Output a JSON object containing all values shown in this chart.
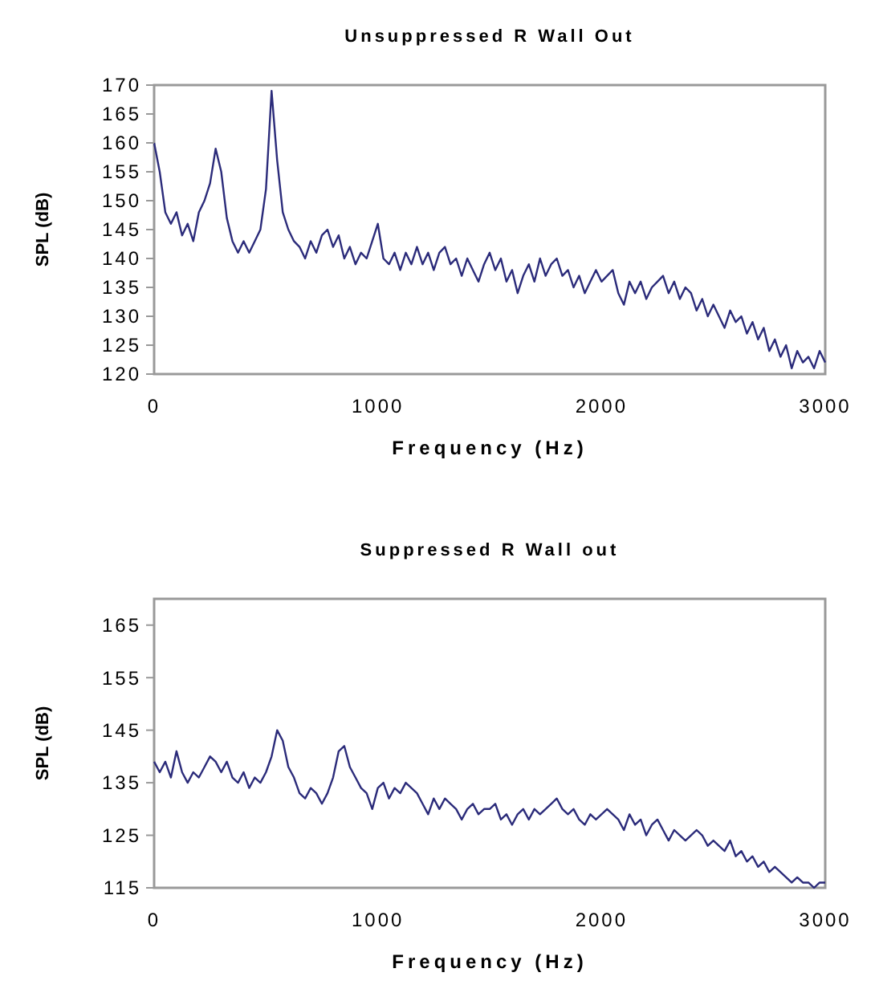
{
  "chart_data": [
    {
      "type": "line",
      "title": "Unsuppressed R Wall Out",
      "xlabel": "Frequency (Hz)",
      "ylabel": "SPL (dB)",
      "xlim": [
        0,
        3000
      ],
      "xticks": [
        0,
        1000,
        2000,
        3000
      ],
      "ylim": [
        120,
        170
      ],
      "yticks": [
        120,
        125,
        130,
        135,
        140,
        145,
        150,
        155,
        160,
        165,
        170
      ],
      "x": [
        0,
        25,
        50,
        75,
        100,
        125,
        150,
        175,
        200,
        225,
        250,
        275,
        300,
        325,
        350,
        375,
        400,
        425,
        450,
        475,
        500,
        525,
        550,
        575,
        600,
        625,
        650,
        675,
        700,
        725,
        750,
        775,
        800,
        825,
        850,
        875,
        900,
        925,
        950,
        975,
        1000,
        1025,
        1050,
        1075,
        1100,
        1125,
        1150,
        1175,
        1200,
        1225,
        1250,
        1275,
        1300,
        1325,
        1350,
        1375,
        1400,
        1425,
        1450,
        1475,
        1500,
        1525,
        1550,
        1575,
        1600,
        1625,
        1650,
        1675,
        1700,
        1725,
        1750,
        1775,
        1800,
        1825,
        1850,
        1875,
        1900,
        1925,
        1950,
        1975,
        2000,
        2025,
        2050,
        2075,
        2100,
        2125,
        2150,
        2175,
        2200,
        2225,
        2250,
        2275,
        2300,
        2325,
        2350,
        2375,
        2400,
        2425,
        2450,
        2475,
        2500,
        2525,
        2550,
        2575,
        2600,
        2625,
        2650,
        2675,
        2700,
        2725,
        2750,
        2775,
        2800,
        2825,
        2850,
        2875,
        2900,
        2925,
        2950,
        2975,
        3000
      ],
      "series": [
        {
          "color": "#2b2b7a",
          "values": [
            160,
            155,
            148,
            146,
            148,
            144,
            146,
            143,
            148,
            150,
            153,
            159,
            155,
            147,
            143,
            141,
            143,
            141,
            143,
            145,
            152,
            169,
            157,
            148,
            145,
            143,
            142,
            140,
            143,
            141,
            144,
            145,
            142,
            144,
            140,
            142,
            139,
            141,
            140,
            143,
            146,
            140,
            139,
            141,
            138,
            141,
            139,
            142,
            139,
            141,
            138,
            141,
            142,
            139,
            140,
            137,
            140,
            138,
            136,
            139,
            141,
            138,
            140,
            136,
            138,
            134,
            137,
            139,
            136,
            140,
            137,
            139,
            140,
            137,
            138,
            135,
            137,
            134,
            136,
            138,
            136,
            137,
            138,
            134,
            132,
            136,
            134,
            136,
            133,
            135,
            136,
            137,
            134,
            136,
            133,
            135,
            134,
            131,
            133,
            130,
            132,
            130,
            128,
            131,
            129,
            130,
            127,
            129,
            126,
            128,
            124,
            126,
            123,
            125,
            121,
            124,
            122,
            123,
            121,
            124,
            122
          ]
        }
      ]
    },
    {
      "type": "line",
      "title": "Suppressed R Wall out",
      "xlabel": "Frequency (Hz)",
      "ylabel": "SPL (dB)",
      "xlim": [
        0,
        3000
      ],
      "xticks": [
        0,
        1000,
        2000,
        3000
      ],
      "ylim": [
        115,
        170
      ],
      "yticks": [
        115,
        125,
        135,
        145,
        155,
        165
      ],
      "x": [
        0,
        25,
        50,
        75,
        100,
        125,
        150,
        175,
        200,
        225,
        250,
        275,
        300,
        325,
        350,
        375,
        400,
        425,
        450,
        475,
        500,
        525,
        550,
        575,
        600,
        625,
        650,
        675,
        700,
        725,
        750,
        775,
        800,
        825,
        850,
        875,
        900,
        925,
        950,
        975,
        1000,
        1025,
        1050,
        1075,
        1100,
        1125,
        1150,
        1175,
        1200,
        1225,
        1250,
        1275,
        1300,
        1325,
        1350,
        1375,
        1400,
        1425,
        1450,
        1475,
        1500,
        1525,
        1550,
        1575,
        1600,
        1625,
        1650,
        1675,
        1700,
        1725,
        1750,
        1775,
        1800,
        1825,
        1850,
        1875,
        1900,
        1925,
        1950,
        1975,
        2000,
        2025,
        2050,
        2075,
        2100,
        2125,
        2150,
        2175,
        2200,
        2225,
        2250,
        2275,
        2300,
        2325,
        2350,
        2375,
        2400,
        2425,
        2450,
        2475,
        2500,
        2525,
        2550,
        2575,
        2600,
        2625,
        2650,
        2675,
        2700,
        2725,
        2750,
        2775,
        2800,
        2825,
        2850,
        2875,
        2900,
        2925,
        2950,
        2975,
        3000
      ],
      "series": [
        {
          "color": "#2b2b7a",
          "values": [
            139,
            137,
            139,
            136,
            141,
            137,
            135,
            137,
            136,
            138,
            140,
            139,
            137,
            139,
            136,
            135,
            137,
            134,
            136,
            135,
            137,
            140,
            145,
            143,
            138,
            136,
            133,
            132,
            134,
            133,
            131,
            133,
            136,
            141,
            142,
            138,
            136,
            134,
            133,
            130,
            134,
            135,
            132,
            134,
            133,
            135,
            134,
            133,
            131,
            129,
            132,
            130,
            132,
            131,
            130,
            128,
            130,
            131,
            129,
            130,
            130,
            131,
            128,
            129,
            127,
            129,
            130,
            128,
            130,
            129,
            130,
            131,
            132,
            130,
            129,
            130,
            128,
            127,
            129,
            128,
            129,
            130,
            129,
            128,
            126,
            129,
            127,
            128,
            125,
            127,
            128,
            126,
            124,
            126,
            125,
            124,
            125,
            126,
            125,
            123,
            124,
            123,
            122,
            124,
            121,
            122,
            120,
            121,
            119,
            120,
            118,
            119,
            118,
            117,
            116,
            117,
            116,
            116,
            115,
            116,
            116
          ]
        }
      ]
    }
  ]
}
